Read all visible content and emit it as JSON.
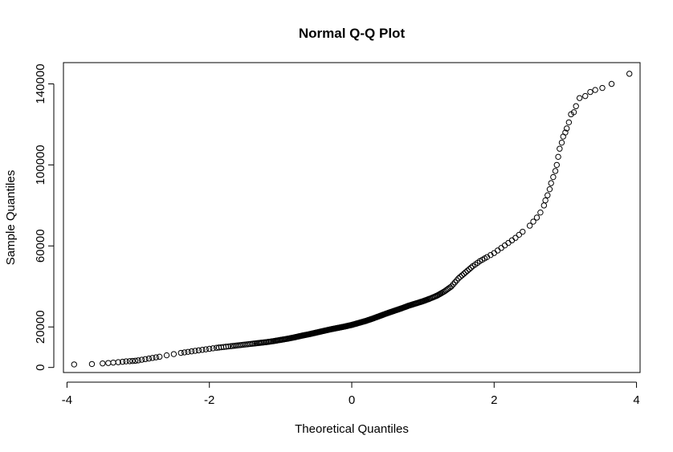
{
  "chart_data": {
    "type": "scatter",
    "title": "Normal Q-Q Plot",
    "xlabel": "Theoretical Quantiles",
    "ylabel": "Sample Quantiles",
    "xlim": [
      -4.05,
      4.05
    ],
    "ylim": [
      -2500,
      150500
    ],
    "x_ticks": [
      -4,
      -2,
      0,
      2,
      4
    ],
    "x_tick_labels": [
      "-4",
      "-2",
      "0",
      "2",
      "4"
    ],
    "y_ticks": [
      0,
      20000,
      60000,
      100000,
      140000
    ],
    "y_tick_labels": [
      "0",
      "20000",
      "60000",
      "100000",
      "140000"
    ],
    "grid": false,
    "legend": "none",
    "marker": "open-circle",
    "series": [
      {
        "x": [
          -3.9,
          -3.65,
          -3.5,
          -3.42,
          -3.35,
          -3.28,
          -3.22,
          -3.17,
          -3.12,
          -3.08,
          -3.04,
          -3.0,
          -2.95,
          -2.9,
          -2.85,
          -2.8,
          -2.75,
          -2.7,
          -2.6,
          -2.5,
          -2.4,
          -2.3,
          -2.2,
          -2.1,
          -2.0,
          -1.9,
          -1.8,
          -1.7,
          -1.6,
          -1.5,
          -1.4,
          -1.3,
          -1.2,
          -1.1,
          -1.0,
          -0.9,
          -0.8,
          -0.7,
          -0.6,
          -0.5,
          -0.4,
          -0.3,
          -0.2,
          -0.1,
          0.0,
          0.1,
          0.2,
          0.3,
          0.4,
          0.5,
          0.6,
          0.7,
          0.8,
          0.9,
          1.0,
          1.1,
          1.2,
          1.3,
          1.4,
          1.5,
          1.6,
          1.7,
          1.8,
          1.9,
          2.0,
          2.1,
          2.2,
          2.3,
          2.4,
          2.5,
          2.55,
          2.6,
          2.65,
          2.7,
          2.72,
          2.75,
          2.78,
          2.8,
          2.83,
          2.86,
          2.88,
          2.9,
          2.92,
          2.95,
          2.97,
          3.0,
          3.02,
          3.05,
          3.08,
          3.12,
          3.15,
          3.2,
          3.28,
          3.35,
          3.42,
          3.52,
          3.65,
          3.9
        ],
        "y": [
          1500,
          1700,
          2000,
          2200,
          2400,
          2600,
          2800,
          3000,
          3100,
          3200,
          3300,
          3500,
          3800,
          4100,
          4400,
          4700,
          5000,
          5300,
          6000,
          6600,
          7200,
          7700,
          8200,
          8700,
          9200,
          9700,
          10100,
          10500,
          10900,
          11300,
          11700,
          12100,
          12500,
          13000,
          13600,
          14200,
          14900,
          15700,
          16400,
          17200,
          18000,
          18800,
          19500,
          20200,
          21000,
          22000,
          23000,
          24200,
          25500,
          26800,
          28000,
          29200,
          30500,
          31600,
          32700,
          34000,
          35500,
          37500,
          40000,
          44000,
          47000,
          50000,
          52500,
          54500,
          56500,
          59000,
          61500,
          64000,
          67000,
          70000,
          72000,
          74000,
          76500,
          80000,
          82500,
          85000,
          88000,
          91000,
          94000,
          97000,
          100000,
          104000,
          108000,
          111000,
          114000,
          116000,
          118000,
          121000,
          125000,
          126000,
          129000,
          133000,
          134000,
          136000,
          137000,
          138000,
          140000,
          145000
        ]
      }
    ]
  }
}
